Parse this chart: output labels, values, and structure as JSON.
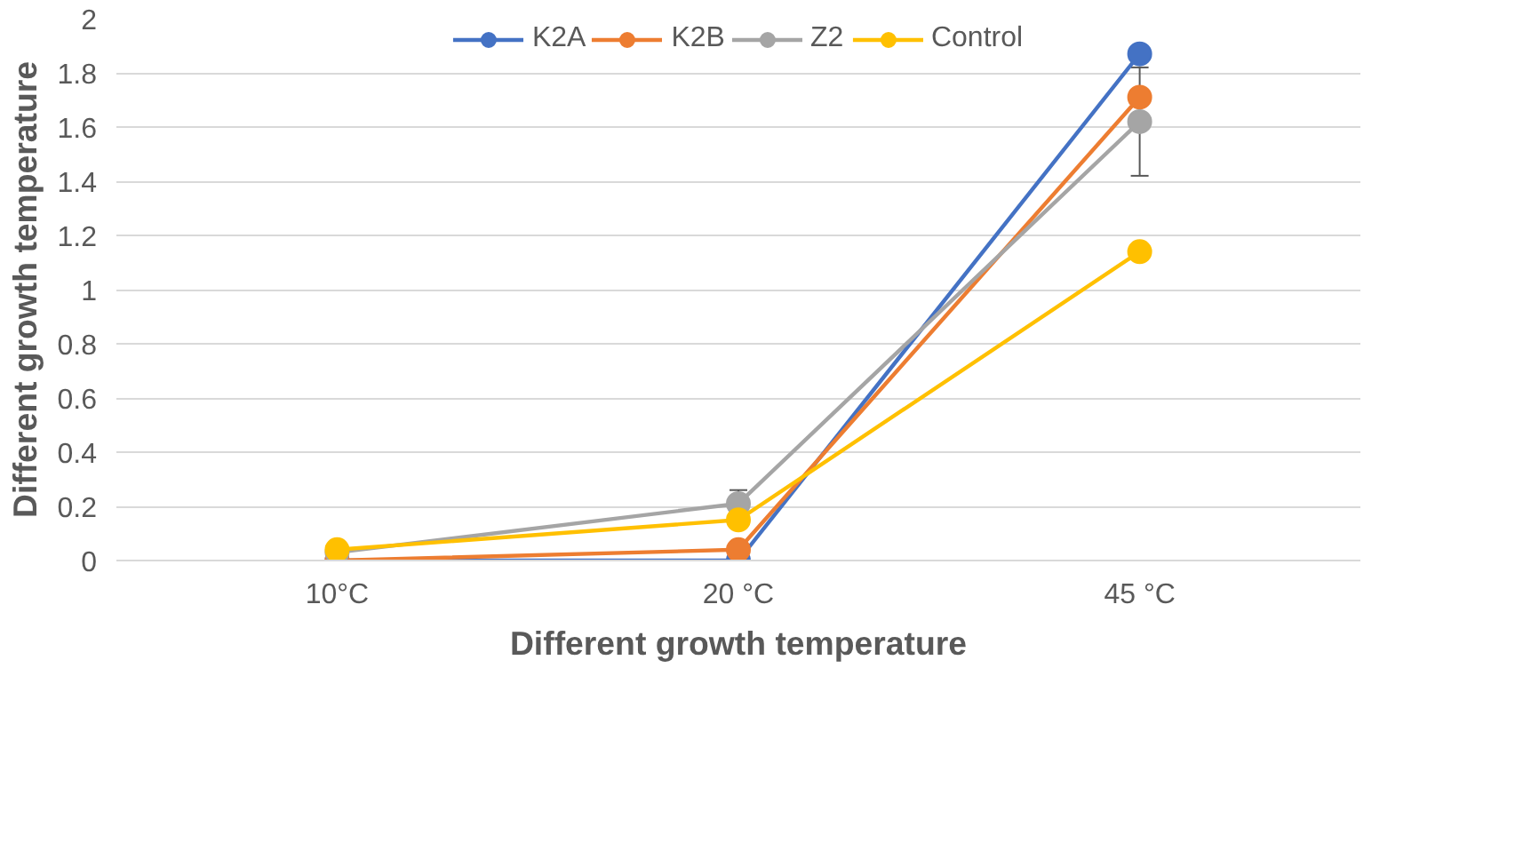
{
  "chart_data": {
    "type": "line",
    "xlabel": "Different growth temperature",
    "ylabel": "Different growth temperature",
    "categories": [
      "10°C",
      "20 °C",
      "45 °C"
    ],
    "series": [
      {
        "name": "K2A",
        "color": "#4472c4",
        "values": [
          0,
          0,
          1.87
        ]
      },
      {
        "name": "K2B",
        "color": "#ed7d31",
        "values": [
          0,
          0.04,
          1.71
        ]
      },
      {
        "name": "Z2",
        "color": "#a5a5a5",
        "values": [
          0.03,
          0.21,
          1.62
        ],
        "errors": [
          null,
          0.05,
          0.2
        ]
      },
      {
        "name": "Control",
        "color": "#ffc000",
        "values": [
          0.04,
          0.15,
          1.14
        ]
      }
    ],
    "ylim": [
      0,
      2
    ],
    "yticks": [
      0,
      0.2,
      0.4,
      0.6,
      0.8,
      1,
      1.2,
      1.4,
      1.6,
      1.8,
      2
    ],
    "grid": "y",
    "legend": "top",
    "marker": "circle",
    "line_style": "solid"
  }
}
